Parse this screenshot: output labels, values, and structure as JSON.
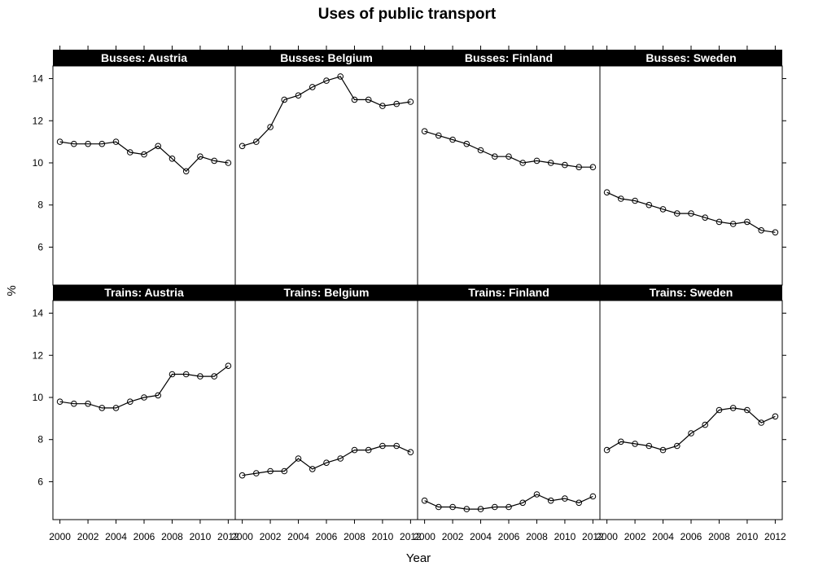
{
  "chart_data": {
    "type": "line",
    "title": "Uses of public transport",
    "xlabel": "Year",
    "ylabel": "%",
    "xlim": [
      1999.5,
      2012.5
    ],
    "ylim": [
      4.2,
      14.6
    ],
    "xticks": [
      2000,
      2002,
      2004,
      2006,
      2008,
      2010,
      2012
    ],
    "yticks": [
      6,
      8,
      10,
      12,
      14
    ],
    "x": [
      2000,
      2001,
      2002,
      2003,
      2004,
      2005,
      2006,
      2007,
      2008,
      2009,
      2010,
      2011,
      2012
    ],
    "panels": [
      {
        "label": "Busses: Austria",
        "values": [
          11.0,
          10.9,
          10.9,
          10.9,
          11.0,
          10.5,
          10.4,
          10.8,
          10.2,
          9.6,
          10.3,
          10.1,
          10.0
        ]
      },
      {
        "label": "Busses: Belgium",
        "values": [
          10.8,
          11.0,
          11.7,
          13.0,
          13.2,
          13.6,
          13.9,
          14.1,
          13.0,
          13.0,
          12.7,
          12.8,
          12.9
        ]
      },
      {
        "label": "Busses: Finland",
        "values": [
          11.5,
          11.3,
          11.1,
          10.9,
          10.6,
          10.3,
          10.3,
          10.0,
          10.1,
          10.0,
          9.9,
          9.8,
          9.8
        ]
      },
      {
        "label": "Busses: Sweden",
        "values": [
          8.6,
          8.3,
          8.2,
          8.0,
          7.8,
          7.6,
          7.6,
          7.4,
          7.2,
          7.1,
          7.2,
          6.8,
          6.7
        ]
      },
      {
        "label": "Trains: Austria",
        "values": [
          9.8,
          9.7,
          9.7,
          9.5,
          9.5,
          9.8,
          10.0,
          10.1,
          11.1,
          11.1,
          11.0,
          11.0,
          11.5
        ]
      },
      {
        "label": "Trains: Belgium",
        "values": [
          6.3,
          6.4,
          6.5,
          6.5,
          7.1,
          6.6,
          6.9,
          7.1,
          7.5,
          7.5,
          7.7,
          7.7,
          7.4
        ]
      },
      {
        "label": "Trains: Finland",
        "values": [
          5.1,
          4.8,
          4.8,
          4.7,
          4.7,
          4.8,
          4.8,
          5.0,
          5.4,
          5.1,
          5.2,
          5.0,
          5.3
        ]
      },
      {
        "label": "Trains: Sweden",
        "values": [
          7.5,
          7.9,
          7.8,
          7.7,
          7.5,
          7.7,
          8.3,
          8.7,
          9.4,
          9.5,
          9.4,
          8.8,
          9.1
        ]
      }
    ]
  }
}
